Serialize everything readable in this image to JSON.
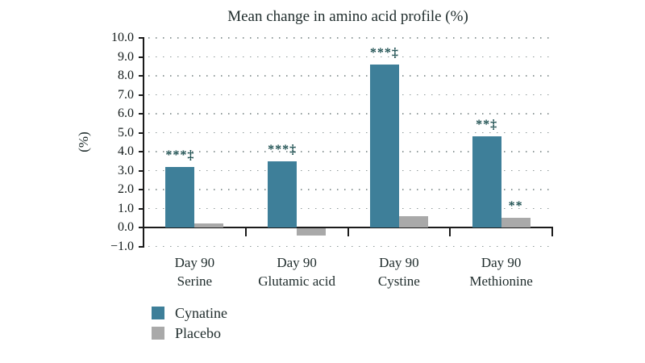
{
  "chart_data": {
    "type": "bar",
    "title": "Mean change in amino acid profile (%)",
    "ylabel": "(%)",
    "ylim": [
      -1.0,
      10.0
    ],
    "ytick_step": 1.0,
    "grid": "dotted-horizontal",
    "legend_position": "bottom-left",
    "annotation_color": "#1d4f50",
    "categories": [
      "Day 90\nSerine",
      "Day 90\nGlutamic acid",
      "Day 90\nCystine",
      "Day 90\nMethionine"
    ],
    "series": [
      {
        "name": "Cynatine",
        "color": "#3e7f99",
        "values": [
          3.2,
          3.5,
          8.6,
          4.8
        ],
        "annotations": [
          "***‡",
          "***‡",
          "***‡",
          "**‡"
        ]
      },
      {
        "name": "Placebo",
        "color": "#a9a9a9",
        "values": [
          0.2,
          -0.4,
          0.6,
          0.5
        ],
        "annotations": [
          "",
          "",
          "",
          "**"
        ]
      }
    ]
  }
}
